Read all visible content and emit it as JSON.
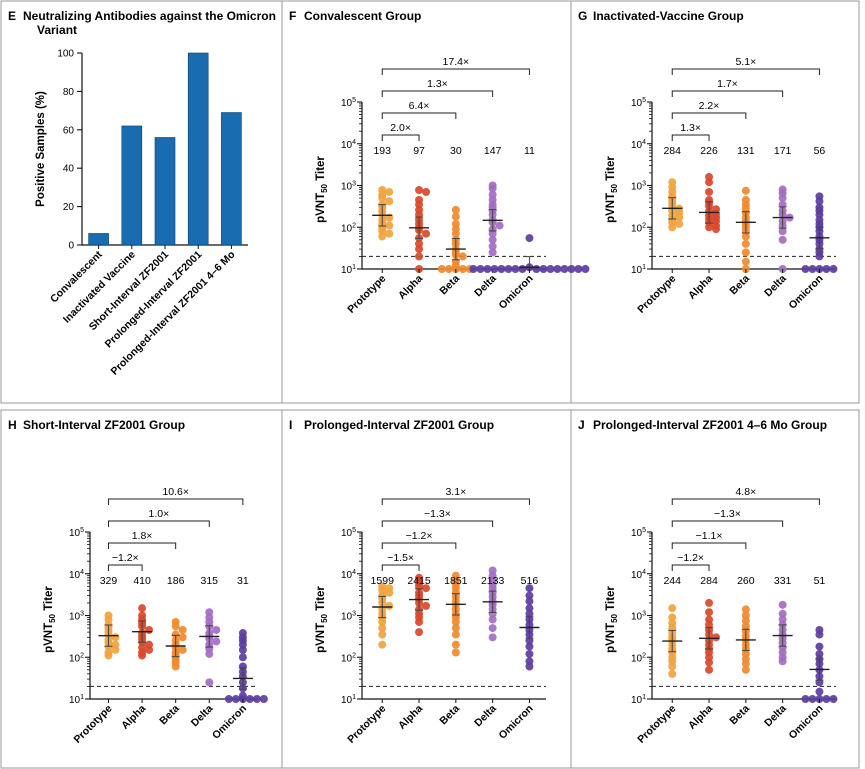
{
  "colors": {
    "bar": "#1a6cb0",
    "Prototype": "#f0a33d",
    "Alpha": "#d9482b",
    "Beta": "#f0892e",
    "Delta": "#a36cc2",
    "Omicron": "#5b3d9e",
    "frame": "#9a9a9a",
    "errorbar": "#444444"
  },
  "chart_data": [
    {
      "id": "E",
      "type": "bar",
      "letter": "E",
      "title": "Neutralizing Antibodies against the Omicron Variant",
      "ylabel": "Positive Samples (%)",
      "ylim": [
        0,
        100
      ],
      "yticks": [
        "0",
        "20",
        "40",
        "60",
        "80",
        "100"
      ],
      "categories": [
        "Convalescent",
        "Inactivated Vaccine",
        "Short-Interval ZF2001",
        "Prolonged-Interval ZF2001",
        "Prolonged-Interval ZF2001 4–6 Mo"
      ],
      "values": [
        6,
        62,
        56,
        100,
        69
      ]
    },
    {
      "id": "F",
      "type": "scatter",
      "letter": "F",
      "title": "Convalescent Group",
      "ylabel_main": "pVNT",
      "ylabel_sub": "50",
      "ylabel_tail": " Titer",
      "yscale": "log10",
      "ylim": [
        10,
        100000
      ],
      "ytick_base": "10",
      "ytick_exps": [
        "1",
        "2",
        "3",
        "4",
        "5"
      ],
      "threshold": 20,
      "categories": [
        "Prototype",
        "Alpha",
        "Beta",
        "Delta",
        "Omicron"
      ],
      "gmt": [
        "193",
        "97",
        "30",
        "147",
        "11"
      ],
      "gmt_values": [
        193,
        97,
        30,
        147,
        11
      ],
      "points": [
        [
          780,
          700,
          600,
          500,
          420,
          350,
          300,
          240,
          200,
          170,
          150,
          120,
          110,
          95,
          80,
          70,
          60
        ],
        [
          780,
          700,
          450,
          350,
          260,
          200,
          150,
          120,
          100,
          85,
          70,
          55,
          40,
          30,
          20,
          10
        ],
        [
          260,
          180,
          120,
          90,
          70,
          50,
          40,
          30,
          25,
          22,
          20,
          15,
          12,
          10,
          10,
          10,
          10,
          10
        ],
        [
          1000,
          850,
          600,
          450,
          350,
          300,
          250,
          200,
          150,
          130,
          110,
          90,
          70,
          50,
          35,
          25
        ],
        [
          55,
          11,
          10,
          10,
          10,
          10,
          10,
          10,
          10,
          10,
          10,
          10,
          10,
          10,
          10,
          10,
          10,
          10
        ]
      ],
      "comparisons": [
        {
          "label": "2.0×",
          "to": 1
        },
        {
          "label": "6.4×",
          "to": 2
        },
        {
          "label": "1.3×",
          "to": 3
        },
        {
          "label": "17.4×",
          "to": 4
        }
      ]
    },
    {
      "id": "G",
      "type": "scatter",
      "letter": "G",
      "title": "Inactivated-Vaccine Group",
      "ylabel_main": "pVNT",
      "ylabel_sub": "50",
      "ylabel_tail": " Titer",
      "yscale": "log10",
      "ylim": [
        10,
        100000
      ],
      "ytick_base": "10",
      "ytick_exps": [
        "1",
        "2",
        "3",
        "4",
        "5"
      ],
      "threshold": 20,
      "categories": [
        "Prototype",
        "Alpha",
        "Beta",
        "Delta",
        "Omicron"
      ],
      "gmt": [
        "284",
        "226",
        "131",
        "171",
        "56"
      ],
      "gmt_values": [
        284,
        226,
        131,
        171,
        56
      ],
      "points": [
        [
          1200,
          900,
          700,
          550,
          450,
          380,
          320,
          280,
          250,
          220,
          190,
          170,
          150,
          130,
          120,
          100
        ],
        [
          1600,
          1200,
          700,
          450,
          380,
          320,
          270,
          240,
          210,
          190,
          170,
          160,
          140,
          130,
          110,
          100,
          90
        ],
        [
          750,
          450,
          350,
          280,
          220,
          170,
          140,
          120,
          100,
          80,
          60,
          40,
          25,
          15,
          10
        ],
        [
          800,
          650,
          500,
          350,
          250,
          200,
          170,
          140,
          110,
          80,
          50,
          10
        ],
        [
          550,
          420,
          300,
          250,
          200,
          150,
          120,
          100,
          80,
          60,
          50,
          40,
          30,
          25,
          20,
          10,
          10,
          10,
          10,
          10
        ]
      ],
      "comparisons": [
        {
          "label": "1.3×",
          "to": 1
        },
        {
          "label": "2.2×",
          "to": 2
        },
        {
          "label": "1.7×",
          "to": 3
        },
        {
          "label": "5.1×",
          "to": 4
        }
      ]
    },
    {
      "id": "H",
      "type": "scatter",
      "letter": "H",
      "title": "Short-Interval ZF2001 Group",
      "ylabel_main": "pVNT",
      "ylabel_sub": "50",
      "ylabel_tail": " Titer",
      "yscale": "log10",
      "ylim": [
        10,
        100000
      ],
      "ytick_base": "10",
      "ytick_exps": [
        "1",
        "2",
        "3",
        "4",
        "5"
      ],
      "threshold": 20,
      "categories": [
        "Prototype",
        "Alpha",
        "Beta",
        "Delta",
        "Omicron"
      ],
      "gmt": [
        "329",
        "410",
        "186",
        "315",
        "31"
      ],
      "gmt_values": [
        329,
        410,
        186,
        315,
        31
      ],
      "points": [
        [
          1000,
          800,
          600,
          500,
          420,
          350,
          300,
          260,
          220,
          200,
          180,
          150,
          130,
          110
        ],
        [
          1500,
          1000,
          800,
          650,
          550,
          450,
          380,
          320,
          270,
          230,
          200,
          170,
          150,
          130,
          110
        ],
        [
          700,
          550,
          450,
          350,
          300,
          250,
          200,
          170,
          150,
          130,
          110,
          90,
          75,
          60
        ],
        [
          1200,
          900,
          700,
          550,
          450,
          380,
          320,
          280,
          240,
          200,
          160,
          120,
          25
        ],
        [
          380,
          300,
          250,
          200,
          150,
          100,
          60,
          45,
          35,
          25,
          18,
          12,
          10,
          10,
          10,
          10,
          10,
          10
        ]
      ],
      "comparisons": [
        {
          "label": "−1.2×",
          "to": 1
        },
        {
          "label": "1.8×",
          "to": 2
        },
        {
          "label": "1.0×",
          "to": 3
        },
        {
          "label": "10.6×",
          "to": 4
        }
      ]
    },
    {
      "id": "I",
      "type": "scatter",
      "letter": "I",
      "title": "Prolonged-Interval ZF2001 Group",
      "ylabel_main": "pVNT",
      "ylabel_sub": "50",
      "ylabel_tail": " Titer",
      "yscale": "log10",
      "ylim": [
        10,
        100000
      ],
      "ytick_base": "10",
      "ytick_exps": [
        "1",
        "2",
        "3",
        "4",
        "5"
      ],
      "threshold": 20,
      "categories": [
        "Prototype",
        "Alpha",
        "Beta",
        "Delta",
        "Omicron"
      ],
      "gmt": [
        "1599",
        "2415",
        "1851",
        "2133",
        "516"
      ],
      "gmt_values": [
        1599,
        2415,
        1851,
        2133,
        516
      ],
      "points": [
        [
          5000,
          4500,
          4000,
          3500,
          3000,
          2500,
          2000,
          1700,
          1400,
          1100,
          900,
          700,
          500,
          350,
          200
        ],
        [
          8000,
          7000,
          6000,
          5000,
          4500,
          3500,
          3000,
          2500,
          2000,
          1700,
          1400,
          1100,
          900,
          700,
          400
        ],
        [
          9000,
          7000,
          5500,
          4500,
          3500,
          2800,
          2200,
          1800,
          1400,
          1100,
          900,
          700,
          500,
          350,
          200,
          130
        ],
        [
          12000,
          9000,
          7000,
          5500,
          4500,
          3500,
          2800,
          2200,
          1800,
          1400,
          1100,
          800,
          500,
          300
        ],
        [
          4500,
          3000,
          2200,
          1500,
          1100,
          800,
          600,
          450,
          350,
          250,
          180,
          120,
          80,
          60
        ]
      ],
      "comparisons": [
        {
          "label": "−1.5×",
          "to": 1
        },
        {
          "label": "−1.2×",
          "to": 2
        },
        {
          "label": "−1.3×",
          "to": 3
        },
        {
          "label": "3.1×",
          "to": 4
        }
      ]
    },
    {
      "id": "J",
      "type": "scatter",
      "letter": "J",
      "title": "Prolonged-Interval ZF2001 4–6 Mo Group",
      "ylabel_main": "pVNT",
      "ylabel_sub": "50",
      "ylabel_tail": " Titer",
      "yscale": "log10",
      "ylim": [
        10,
        100000
      ],
      "ytick_base": "10",
      "ytick_exps": [
        "1",
        "2",
        "3",
        "4",
        "5"
      ],
      "threshold": 20,
      "categories": [
        "Prototype",
        "Alpha",
        "Beta",
        "Delta",
        "Omicron"
      ],
      "gmt": [
        "244",
        "284",
        "260",
        "331",
        "51"
      ],
      "gmt_values": [
        244,
        284,
        260,
        331,
        51
      ],
      "points": [
        [
          1500,
          900,
          650,
          500,
          380,
          300,
          250,
          200,
          160,
          130,
          100,
          80,
          60,
          40
        ],
        [
          2000,
          1200,
          800,
          600,
          450,
          350,
          300,
          250,
          200,
          160,
          130,
          100,
          75,
          50
        ],
        [
          1400,
          1000,
          750,
          550,
          420,
          320,
          260,
          200,
          160,
          120,
          90,
          70,
          50
        ],
        [
          1800,
          1100,
          800,
          600,
          450,
          350,
          280,
          220,
          170,
          130,
          100,
          80
        ],
        [
          450,
          350,
          180,
          120,
          90,
          70,
          50,
          35,
          25,
          15,
          10,
          10,
          10,
          10,
          10
        ]
      ],
      "comparisons": [
        {
          "label": "−1.2×",
          "to": 1
        },
        {
          "label": "−1.1×",
          "to": 2
        },
        {
          "label": "−1.3×",
          "to": 3
        },
        {
          "label": "4.8×",
          "to": 4
        }
      ]
    }
  ]
}
